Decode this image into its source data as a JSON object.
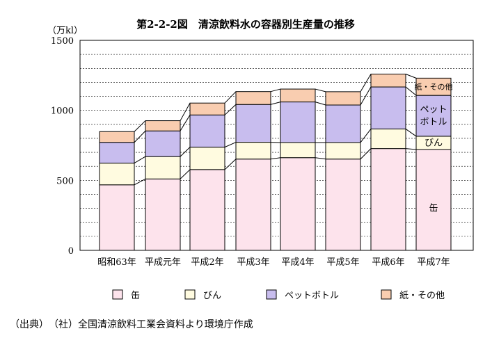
{
  "chart_data": {
    "type": "bar",
    "stacked": true,
    "title": "第2-2-2図　清涼飲料水の容器別生産量の推移",
    "ylabel": "（万kl）",
    "ylim": [
      0,
      1500
    ],
    "yticks": [
      "0",
      "500",
      "1000",
      "1500"
    ],
    "grid": true,
    "categories": [
      "昭和63年",
      "平成元年",
      "平成2年",
      "平成3年",
      "平成4年",
      "平成5年",
      "平成6年",
      "平成7年"
    ],
    "series": [
      {
        "name": "缶",
        "color": "#fde3ec",
        "values": [
          468,
          510,
          577,
          652,
          662,
          652,
          727,
          720
        ]
      },
      {
        "name": "びん",
        "color": "#fffbe0",
        "values": [
          155,
          160,
          160,
          120,
          108,
          118,
          140,
          95
        ]
      },
      {
        "name": "ペットボトル",
        "color": "#c8bdee",
        "values": [
          148,
          183,
          230,
          270,
          290,
          268,
          300,
          292
        ]
      },
      {
        "name": "紙・その他",
        "color": "#f9cdb0",
        "values": [
          77,
          73,
          85,
          92,
          92,
          95,
          92,
          123
        ]
      }
    ],
    "inline_labels": [
      "缶",
      "びん",
      "ペット\nボトル",
      "紙・その他"
    ],
    "legend": [
      "缶",
      "びん",
      "ペットボトル",
      "紙・その他"
    ],
    "legend_position": "bottom"
  },
  "source": "（出典）　（社）全国清涼飲料工業会資料より環境庁作成"
}
